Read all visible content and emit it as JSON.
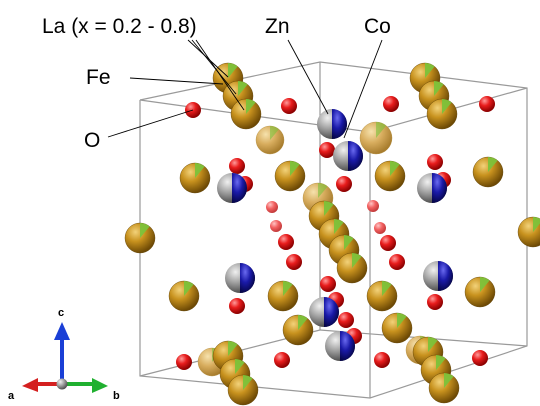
{
  "labels": {
    "la": "La (x = 0.2 - 0.8)",
    "zn": "Zn",
    "co": "Co",
    "fe": "Fe",
    "o": "O"
  },
  "axes": {
    "a": "a",
    "b": "b",
    "c": "c",
    "colors": {
      "a": "#d42020",
      "b": "#20b030",
      "c": "#1a3fd6"
    }
  },
  "colors": {
    "la": "#b8860b",
    "fe": "#7cc23a",
    "o": "#e01818",
    "zn": "#8e8e8e",
    "co": "#1a1a9e",
    "cell_edge": "#9a9a9a"
  }
}
